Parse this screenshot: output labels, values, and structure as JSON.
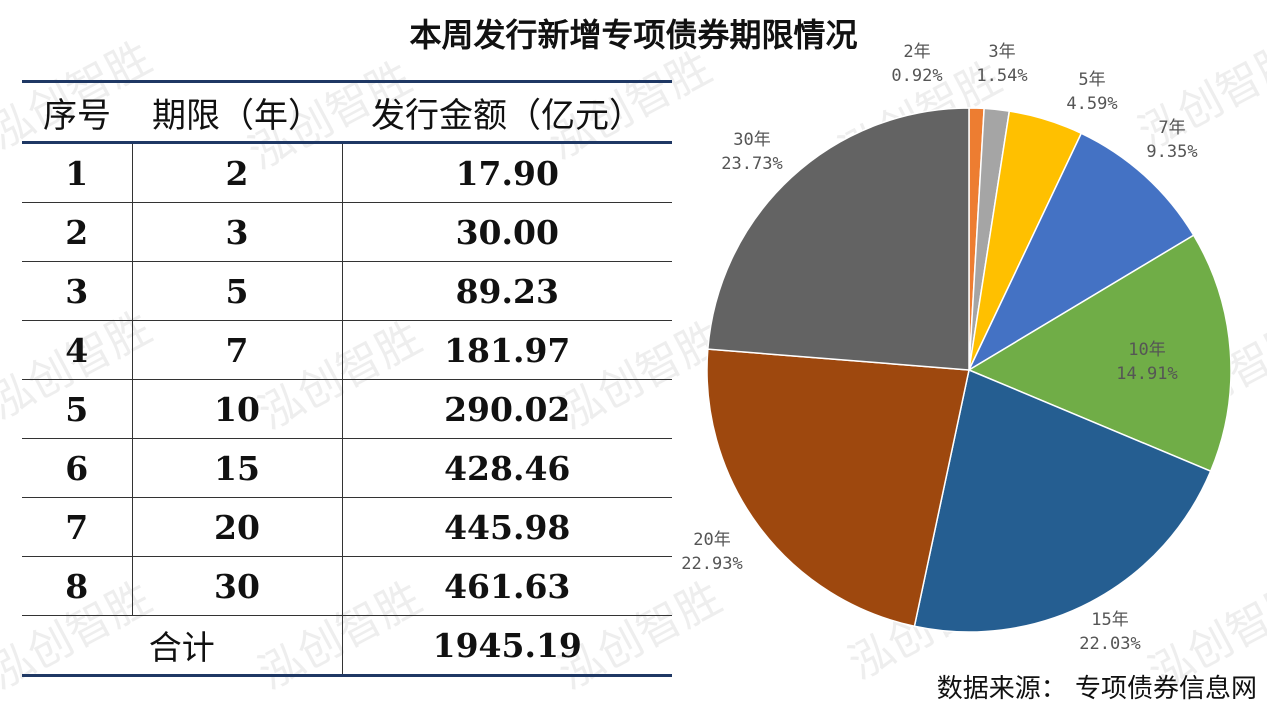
{
  "title": "本周发行新增专项债券期限情况",
  "watermark": "泓创智胜",
  "table": {
    "headers": [
      "序号",
      "期限（年）",
      "发行金额（亿元）"
    ],
    "rows": [
      [
        "1",
        "2",
        "17.90"
      ],
      [
        "2",
        "3",
        "30.00"
      ],
      [
        "3",
        "5",
        "89.23"
      ],
      [
        "4",
        "7",
        "181.97"
      ],
      [
        "5",
        "10",
        "290.02"
      ],
      [
        "6",
        "15",
        "428.46"
      ],
      [
        "7",
        "20",
        "445.98"
      ],
      [
        "8",
        "30",
        "461.63"
      ]
    ],
    "total_label": "合计",
    "total_value": "1945.19"
  },
  "chart_data": {
    "type": "pie",
    "labels": [
      "2年",
      "3年",
      "5年",
      "7年",
      "10年",
      "15年",
      "20年",
      "30年"
    ],
    "values": [
      0.92,
      1.54,
      4.59,
      9.35,
      14.91,
      22.03,
      22.93,
      23.73
    ],
    "value_labels": [
      "0.92%",
      "1.54%",
      "4.59%",
      "9.35%",
      "14.91%",
      "22.03%",
      "22.93%",
      "23.73%"
    ],
    "colors": [
      "#ed7d31",
      "#a5a5a5",
      "#ffc000",
      "#4472c4",
      "#70ad47",
      "#255e91",
      "#9e480e",
      "#636363"
    ]
  },
  "source": "数据来源：  专项债券信息网"
}
